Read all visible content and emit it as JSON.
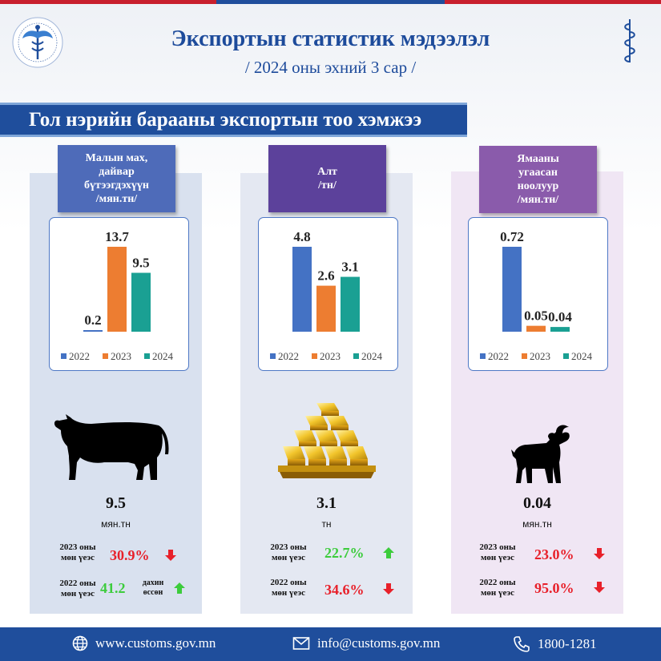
{
  "header": {
    "title": "Экспортын статистик мэдээлэл",
    "subtitle": "/ 2024 оны эхний 3 сар /"
  },
  "section_title": "Гол нэрийн барааны экспортын тоо хэмжээ",
  "colors": {
    "series_2022": "#4472c4",
    "series_2023": "#ed7d31",
    "series_2024": "#1aa093",
    "increase": "#3ccc3c",
    "decrease": "#e8202a",
    "brand": "#1f4e9c"
  },
  "chart_data": [
    {
      "type": "bar",
      "title": "Малын мах, дайвар бүтээгдэхүүн /мян.тн/",
      "categories": [
        "2022",
        "2023",
        "2024"
      ],
      "values": [
        0.2,
        13.7,
        9.5
      ],
      "value_labels": [
        "0.2",
        "13.7",
        "9.5"
      ],
      "legend": [
        "2022",
        "2023",
        "2024"
      ],
      "legend_position": "bottom"
    },
    {
      "type": "bar",
      "title": "Алт /тн/",
      "categories": [
        "2022",
        "2023",
        "2024"
      ],
      "values": [
        4.8,
        2.6,
        3.1
      ],
      "value_labels": [
        "4.8",
        "2.6",
        "3.1"
      ],
      "legend": [
        "2022",
        "2023",
        "2024"
      ],
      "legend_position": "bottom"
    },
    {
      "type": "bar",
      "title": "Ямааны угаасан ноолуур /мян.тн/",
      "categories": [
        "2022",
        "2023",
        "2024"
      ],
      "values": [
        0.72,
        0.05,
        0.04
      ],
      "value_labels": [
        "0.72",
        "0.05",
        "0.04"
      ],
      "legend": [
        "2022",
        "2023",
        "2024"
      ],
      "legend_position": "bottom"
    }
  ],
  "panels": [
    {
      "header_lines": [
        "Малын мах,",
        "дайвар",
        "бүтээгдэхүүн",
        "/мян.тн/"
      ],
      "icon": "cow-icon",
      "value": "9.5",
      "unit": "мян.тн",
      "cmp_2023": {
        "label_lines": [
          "2023 оны",
          "мөн үеэс"
        ],
        "pct": "30.9%",
        "direction": "down"
      },
      "cmp_2022": {
        "label_lines": [
          "2022 оны",
          "мөн үеэс"
        ],
        "pct": "41.2",
        "note_lines": [
          "дахин",
          "өссөн"
        ],
        "direction": "up"
      }
    },
    {
      "header_lines": [
        "Алт",
        "/тн/"
      ],
      "icon": "gold-bars-icon",
      "value": "3.1",
      "unit": "тн",
      "cmp_2023": {
        "label_lines": [
          "2023 оны",
          "мөн үеэс"
        ],
        "pct": "22.7%",
        "direction": "up"
      },
      "cmp_2022": {
        "label_lines": [
          "2022 оны",
          "мөн үеэс"
        ],
        "pct": "34.6%",
        "direction": "down"
      }
    },
    {
      "header_lines": [
        "Ямааны",
        "угаасан",
        "ноолуур",
        "/мян.тн/"
      ],
      "icon": "goat-icon",
      "value": "0.04",
      "unit": "мян.тн",
      "cmp_2023": {
        "label_lines": [
          "2023 оны",
          "мөн үеэс"
        ],
        "pct": "23.0%",
        "direction": "down"
      },
      "cmp_2022": {
        "label_lines": [
          "2022 оны",
          "мөн үеэс"
        ],
        "pct": "95.0%",
        "direction": "down"
      }
    }
  ],
  "footer": {
    "website": "www.customs.gov.mn",
    "email": "info@customs.gov.mn",
    "phone": "1800-1281"
  }
}
